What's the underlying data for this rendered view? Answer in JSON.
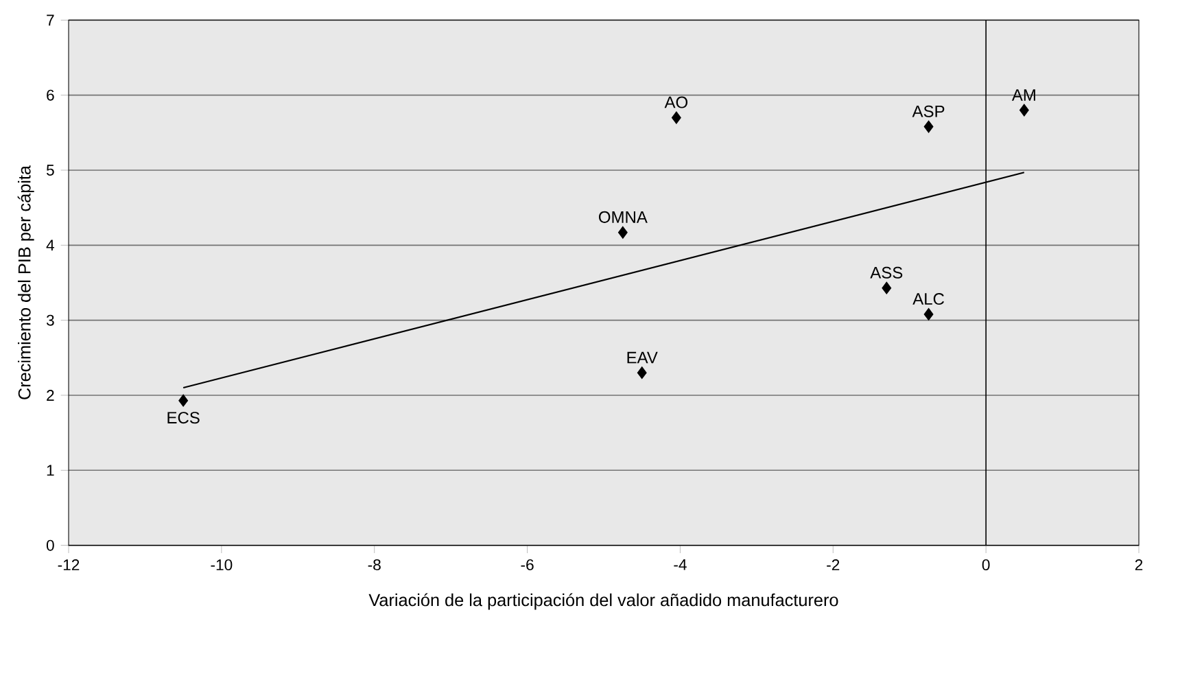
{
  "chart_data": {
    "type": "scatter",
    "xlabel": "Variación de la participación del valor añadido manufacturero",
    "ylabel": "Crecimiento del PIB per cápita",
    "xlim": [
      -12,
      2
    ],
    "xticks": [
      -12,
      -10,
      -8,
      -6,
      -4,
      -2,
      0,
      2
    ],
    "ylim": [
      0,
      7
    ],
    "yticks": [
      0,
      1,
      2,
      3,
      4,
      5,
      6,
      7
    ],
    "grid": "y",
    "series": [
      {
        "marker": "diamond",
        "color": "#000000",
        "x": [
          -10.5,
          -4.5,
          -4.75,
          -4.05,
          -0.75,
          0.5,
          -1.3,
          -0.75
        ],
        "values": [
          1.93,
          2.3,
          4.17,
          5.7,
          5.58,
          5.8,
          3.43,
          3.08
        ]
      },
      {
        "type": "line",
        "color": "#000000",
        "x": [
          -10.5,
          0.5
        ],
        "values": [
          2.1,
          4.97
        ]
      }
    ],
    "ref_lines": [
      {
        "axis": "x",
        "value": 0,
        "color": "#000000"
      }
    ],
    "annotations": [
      {
        "text": "ECS",
        "x": -10.5,
        "y": 1.93
      },
      {
        "text": "EAV",
        "x": -4.5,
        "y": 2.3
      },
      {
        "text": "OMNA",
        "x": -4.75,
        "y": 4.17
      },
      {
        "text": "AO",
        "x": -4.05,
        "y": 5.7
      },
      {
        "text": "ASP",
        "x": -0.75,
        "y": 5.58
      },
      {
        "text": "AM",
        "x": 0.5,
        "y": 5.8
      },
      {
        "text": "ASS",
        "x": -1.3,
        "y": 3.43
      },
      {
        "text": "ALC",
        "x": -0.75,
        "y": 3.08
      }
    ]
  }
}
